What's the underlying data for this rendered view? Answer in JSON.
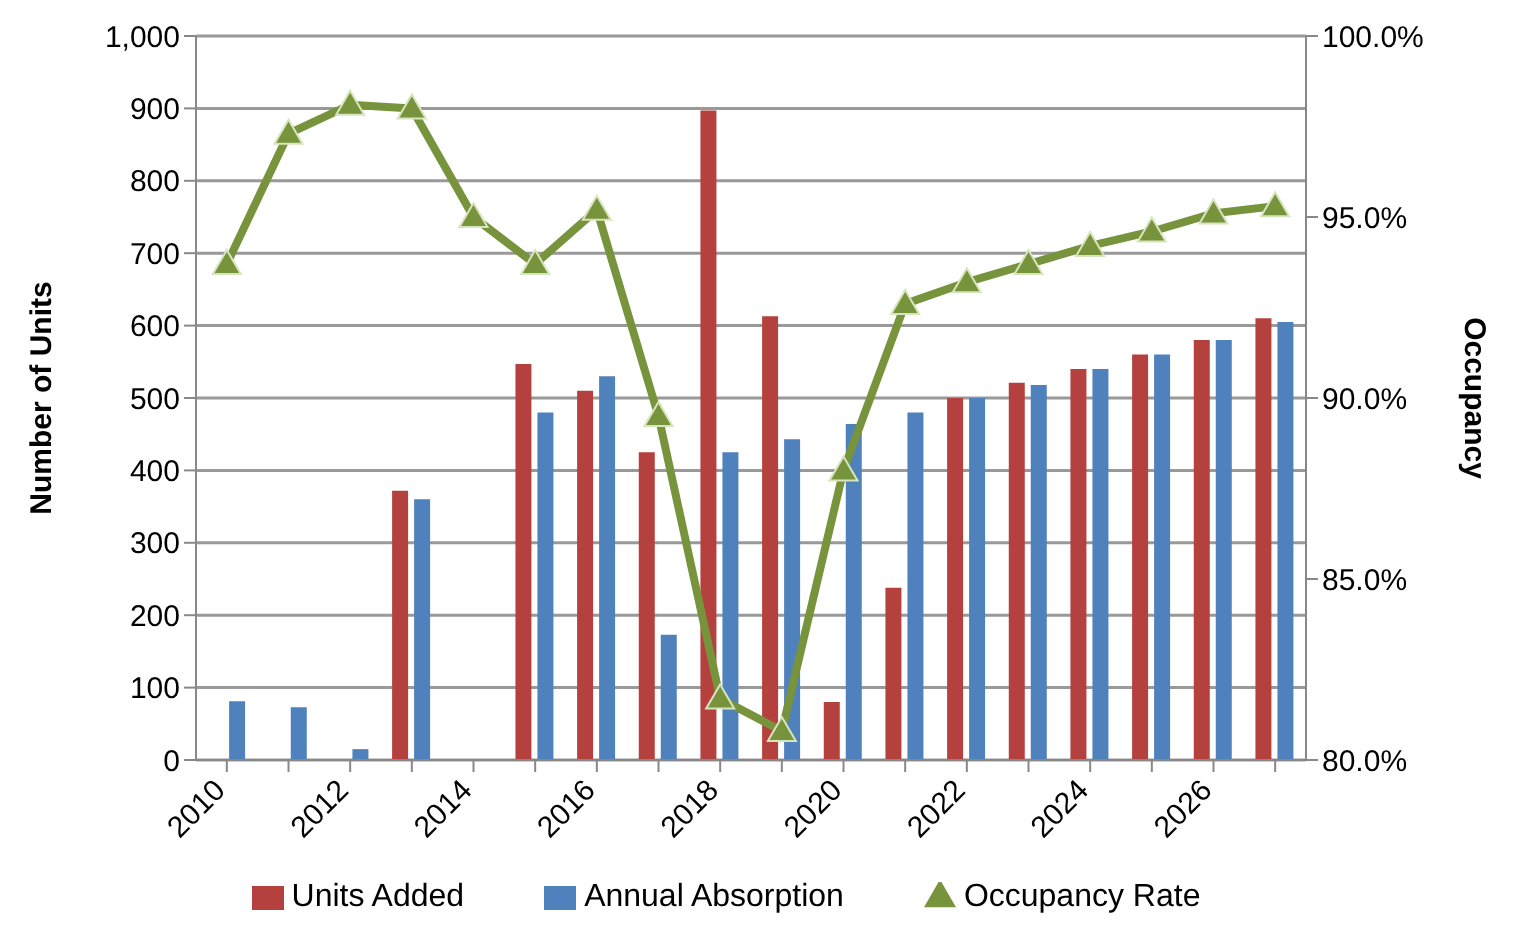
{
  "chart_data": {
    "type": "bar",
    "ylabel": "Number of Units",
    "y2label": "Occupancy",
    "categories": [
      "2010",
      null,
      "2012",
      null,
      "2014",
      null,
      "2016",
      null,
      "2018",
      null,
      "2020",
      null,
      "2022",
      null,
      "2024",
      null,
      "2026",
      null
    ],
    "series": [
      {
        "name": "Units Added",
        "color": "#b5413f",
        "values": [
          0,
          0,
          0,
          372,
          0,
          547,
          510,
          425,
          897,
          613,
          80,
          238,
          500,
          521,
          540,
          560,
          580,
          610
        ]
      },
      {
        "name": "Annual  Absorption",
        "color": "#4f81bd",
        "values": [
          81,
          73,
          15,
          360,
          null,
          480,
          530,
          173,
          425,
          443,
          464,
          480,
          500,
          518,
          540,
          560,
          580,
          605
        ]
      },
      {
        "name": "Occupancy Rate",
        "type": "line",
        "axis": "y2",
        "color": "#77933c",
        "marker": "triangle",
        "values": [
          93.7,
          97.3,
          98.1,
          98.0,
          95.0,
          93.7,
          95.2,
          89.5,
          81.7,
          80.8,
          88.0,
          92.6,
          93.2,
          93.7,
          94.2,
          94.6,
          95.1,
          95.3
        ]
      }
    ],
    "ylim": [
      0,
      1000
    ],
    "yticks": [
      0,
      100,
      200,
      300,
      400,
      500,
      600,
      700,
      800,
      900,
      {
        "value": 1000,
        "label": "1,000"
      }
    ],
    "y2lim": [
      80,
      100
    ],
    "y2ticks": [
      {
        "value": 80,
        "label": "80.0%"
      },
      {
        "value": 85,
        "label": "85.0%"
      },
      {
        "value": 90,
        "label": "90.0%"
      },
      {
        "value": 95,
        "label": "95.0%"
      },
      {
        "value": 100,
        "label": "100.0%"
      }
    ],
    "grid": "y",
    "legend": "bottom"
  }
}
